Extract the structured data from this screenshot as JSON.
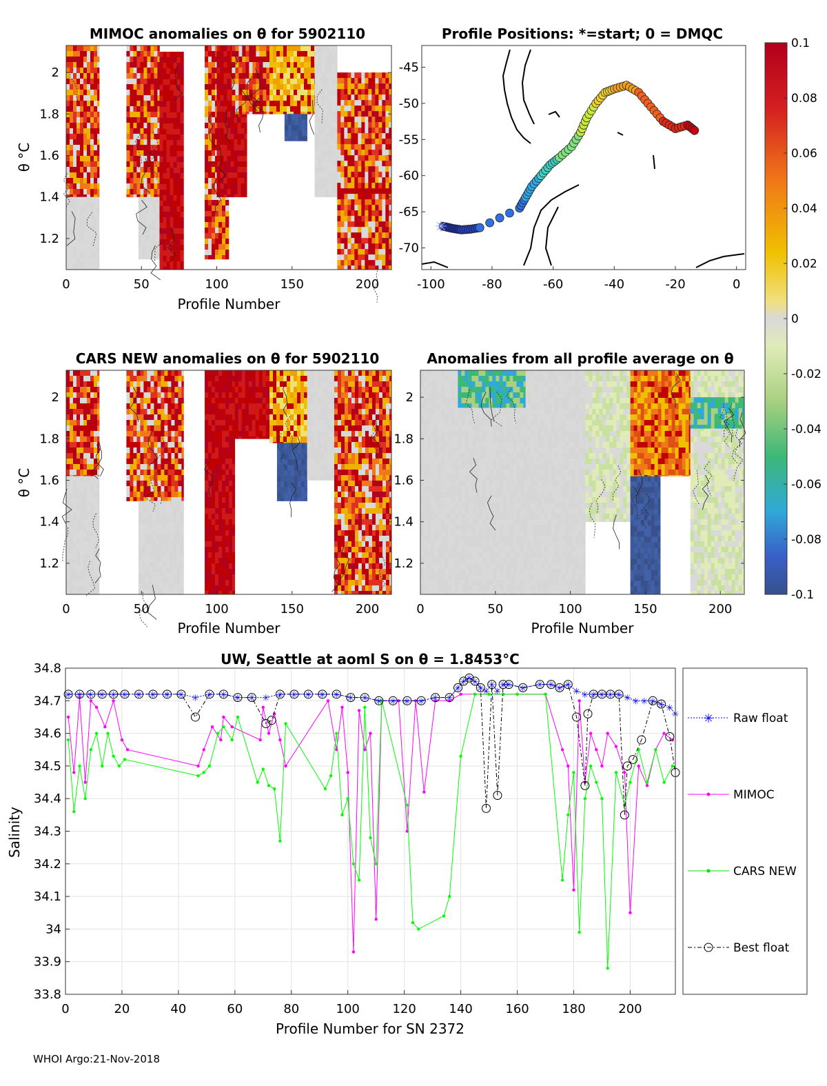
{
  "chart_data": [
    {
      "type": "heatmap",
      "id": "mimoc",
      "title": "MIMOC anomalies on θ  for 5902110",
      "xlabel": "Profile Number",
      "ylabel": "θ °C",
      "xlim": [
        0,
        216
      ],
      "ylim": [
        1.05,
        2.13
      ],
      "xticks": [
        0,
        50,
        100,
        150,
        200
      ],
      "yticks": [
        1.2,
        1.4,
        1.6,
        1.8,
        2
      ],
      "ytick_labels": [
        "1.2",
        "1.4",
        "1.6",
        "1.8",
        "2"
      ],
      "blocks": [
        {
          "x0": 0,
          "x1": 22,
          "y0": 1.4,
          "y1": 2.13,
          "c": "mix"
        },
        {
          "x0": 0,
          "x1": 22,
          "y0": 1.05,
          "y1": 1.4,
          "c": "gray"
        },
        {
          "x0": 40,
          "x1": 62,
          "y0": 1.4,
          "y1": 2.13,
          "c": "mix"
        },
        {
          "x0": 48,
          "x1": 62,
          "y0": 1.1,
          "y1": 1.4,
          "c": "gray"
        },
        {
          "x0": 62,
          "x1": 78,
          "y0": 1.05,
          "y1": 2.1,
          "c": "red"
        },
        {
          "x0": 92,
          "x1": 108,
          "y0": 1.1,
          "y1": 2.13,
          "c": "mix"
        },
        {
          "x0": 100,
          "x1": 120,
          "y0": 1.4,
          "y1": 2.13,
          "c": "red"
        },
        {
          "x0": 110,
          "x1": 135,
          "y0": 1.8,
          "y1": 2.13,
          "c": "mix"
        },
        {
          "x0": 135,
          "x1": 165,
          "y0": 1.8,
          "y1": 2.13,
          "c": "yellow"
        },
        {
          "x0": 145,
          "x1": 160,
          "y0": 1.67,
          "y1": 1.8,
          "c": "blue"
        },
        {
          "x0": 165,
          "x1": 180,
          "y0": 1.4,
          "y1": 2.13,
          "c": "gray"
        },
        {
          "x0": 180,
          "x1": 216,
          "y0": 1.05,
          "y1": 2.0,
          "c": "mix"
        }
      ]
    },
    {
      "type": "scatter",
      "id": "positions",
      "title": "Profile Positions: *=start; 0 = DMQC",
      "xlim": [
        -103,
        3
      ],
      "ylim": [
        -73,
        -42
      ],
      "xticks": [
        -100,
        -80,
        -60,
        -40,
        -20,
        0
      ],
      "yticks": [
        -45,
        -50,
        -55,
        -60,
        -65,
        -70
      ],
      "start": {
        "lon": -97,
        "lat": -67
      },
      "track": [
        [
          -96,
          -67
        ],
        [
          -93,
          -67.3
        ],
        [
          -90,
          -67.5
        ],
        [
          -87,
          -67.4
        ],
        [
          -84,
          -67.2
        ],
        [
          -71,
          -64.5
        ],
        [
          -69,
          -63
        ],
        [
          -67,
          -61.5
        ],
        [
          -64,
          -60
        ],
        [
          -61,
          -58.5
        ],
        [
          -58,
          -57.5
        ],
        [
          -54,
          -56
        ],
        [
          -51,
          -54
        ],
        [
          -49,
          -52
        ],
        [
          -46,
          -50
        ],
        [
          -43,
          -48.5
        ],
        [
          -40,
          -48
        ],
        [
          -36,
          -47.5
        ],
        [
          -32,
          -48.5
        ],
        [
          -28,
          -50.5
        ],
        [
          -24,
          -52.5
        ],
        [
          -20,
          -53.5
        ],
        [
          -16,
          -53
        ],
        [
          -13,
          -54
        ]
      ],
      "colorbar": {
        "min": -0.1,
        "max": 0.1,
        "tick_labels": [
          "0.1",
          "0.08",
          "0.06",
          "0.04",
          "0.02",
          "0",
          "-0.02",
          "-0.04",
          "-0.06",
          "-0.08",
          "-0.1"
        ]
      }
    },
    {
      "type": "heatmap",
      "id": "cars",
      "title": "CARS NEW anomalies on θ for 5902110",
      "xlabel": "Profile Number",
      "ylabel": "θ °C",
      "xlim": [
        0,
        216
      ],
      "ylim": [
        1.05,
        2.13
      ],
      "xticks": [
        0,
        50,
        100,
        150,
        200
      ],
      "yticks": [
        1.2,
        1.4,
        1.6,
        1.8,
        2
      ],
      "ytick_labels": [
        "1.2",
        "1.4",
        "1.6",
        "1.8",
        "2"
      ],
      "blocks": [
        {
          "x0": 0,
          "x1": 22,
          "y0": 1.62,
          "y1": 2.13,
          "c": "mix"
        },
        {
          "x0": 0,
          "x1": 22,
          "y0": 1.05,
          "y1": 1.62,
          "c": "gray"
        },
        {
          "x0": 40,
          "x1": 78,
          "y0": 1.5,
          "y1": 2.13,
          "c": "mix"
        },
        {
          "x0": 48,
          "x1": 78,
          "y0": 1.05,
          "y1": 1.5,
          "c": "gray"
        },
        {
          "x0": 92,
          "x1": 112,
          "y0": 1.05,
          "y1": 2.13,
          "c": "red"
        },
        {
          "x0": 112,
          "x1": 135,
          "y0": 1.8,
          "y1": 2.13,
          "c": "red"
        },
        {
          "x0": 135,
          "x1": 165,
          "y0": 1.78,
          "y1": 2.13,
          "c": "yellow"
        },
        {
          "x0": 140,
          "x1": 160,
          "y0": 1.5,
          "y1": 1.78,
          "c": "blue"
        },
        {
          "x0": 160,
          "x1": 178,
          "y0": 1.6,
          "y1": 2.13,
          "c": "gray"
        },
        {
          "x0": 178,
          "x1": 216,
          "y0": 1.05,
          "y1": 2.13,
          "c": "mix"
        }
      ]
    },
    {
      "type": "heatmap",
      "id": "allavg",
      "title": "Anomalies from all profile average on θ",
      "xlabel": "Profile Number",
      "xlim": [
        0,
        216
      ],
      "ylim": [
        1.05,
        2.13
      ],
      "xticks": [
        0,
        50,
        100,
        150,
        200
      ],
      "yticks": [
        1.2,
        1.4,
        1.6,
        1.8,
        2
      ],
      "ytick_labels": [
        "1.2",
        "1.4",
        "1.6",
        "1.8",
        "2"
      ],
      "blocks": [
        {
          "x0": 0,
          "x1": 110,
          "y0": 1.05,
          "y1": 2.13,
          "c": "gray"
        },
        {
          "x0": 25,
          "x1": 70,
          "y0": 1.95,
          "y1": 2.13,
          "c": "green"
        },
        {
          "x0": 110,
          "x1": 140,
          "y0": 1.4,
          "y1": 2.13,
          "c": "lightgreen"
        },
        {
          "x0": 140,
          "x1": 160,
          "y0": 1.05,
          "y1": 1.62,
          "c": "blue"
        },
        {
          "x0": 140,
          "x1": 180,
          "y0": 1.62,
          "y1": 2.13,
          "c": "orange"
        },
        {
          "x0": 180,
          "x1": 216,
          "y0": 1.05,
          "y1": 2.13,
          "c": "lightgreen"
        },
        {
          "x0": 180,
          "x1": 216,
          "y0": 1.85,
          "y1": 2.0,
          "c": "green"
        }
      ]
    },
    {
      "type": "line",
      "id": "salinity",
      "title": "UW, Seattle at aoml S on θ = 1.8453°C",
      "xlabel": "Profile Number for SN 2372",
      "ylabel": "Salinity",
      "xlim": [
        0,
        216
      ],
      "ylim": [
        33.8,
        34.8
      ],
      "xticks": [
        0,
        20,
        40,
        60,
        80,
        100,
        120,
        140,
        160,
        180,
        200
      ],
      "yticks": [
        33.8,
        33.9,
        34,
        34.1,
        34.2,
        34.3,
        34.4,
        34.5,
        34.6,
        34.7,
        34.8
      ],
      "ytick_labels": [
        "33.8",
        "33.9",
        "34",
        "34.1",
        "34.2",
        "34.3",
        "34.4",
        "34.5",
        "34.6",
        "34.7",
        "34.8"
      ],
      "series": [
        {
          "name": "Raw float",
          "color": "#0000ff",
          "x": [
            1,
            5,
            9,
            13,
            17,
            21,
            26,
            31,
            36,
            41,
            46,
            51,
            56,
            61,
            66,
            71,
            76,
            81,
            86,
            91,
            96,
            101,
            106,
            111,
            116,
            121,
            126,
            131,
            136,
            139,
            141,
            143,
            145,
            147,
            149,
            151,
            153,
            155,
            157,
            162,
            168,
            172,
            175,
            178,
            181,
            184,
            187,
            190,
            193,
            196,
            199,
            202,
            205,
            208,
            211,
            214,
            216
          ],
          "y": [
            34.72,
            34.72,
            34.72,
            34.72,
            34.72,
            34.72,
            34.72,
            34.72,
            34.72,
            34.72,
            34.71,
            34.72,
            34.72,
            34.71,
            34.71,
            34.71,
            34.72,
            34.72,
            34.72,
            34.72,
            34.72,
            34.71,
            34.71,
            34.7,
            34.7,
            34.7,
            34.7,
            34.71,
            34.71,
            34.74,
            34.76,
            34.77,
            34.76,
            34.74,
            34.73,
            34.75,
            34.73,
            34.75,
            34.75,
            34.74,
            34.75,
            34.75,
            34.74,
            34.75,
            34.73,
            34.72,
            34.72,
            34.72,
            34.72,
            34.72,
            34.71,
            34.7,
            34.7,
            34.7,
            34.69,
            34.68,
            34.66
          ]
        },
        {
          "name": "MIMOC",
          "color": "#ff00ff",
          "x": [
            1,
            3,
            5,
            7,
            9,
            11,
            14,
            17,
            20,
            22,
            47,
            49,
            52,
            55,
            56,
            59,
            69,
            70,
            72,
            74,
            76,
            78,
            93,
            96,
            98,
            100,
            102,
            104,
            106,
            108,
            110,
            112,
            118,
            121,
            124,
            127,
            131,
            136,
            140,
            145,
            150,
            155,
            160,
            170,
            176,
            178,
            180,
            182,
            184,
            186,
            188,
            190,
            192,
            195,
            198,
            200,
            203,
            206,
            209,
            212,
            215
          ],
          "y": [
            34.65,
            34.48,
            34.71,
            34.45,
            34.7,
            34.68,
            34.62,
            34.7,
            34.58,
            34.55,
            34.5,
            34.55,
            34.62,
            34.58,
            34.65,
            34.62,
            34.58,
            34.68,
            34.6,
            34.66,
            34.58,
            34.5,
            34.7,
            34.55,
            34.68,
            34.48,
            33.93,
            34.67,
            34.55,
            34.6,
            34.03,
            34.7,
            34.7,
            34.3,
            34.7,
            34.42,
            34.7,
            34.7,
            34.72,
            34.72,
            34.72,
            34.72,
            34.72,
            34.72,
            34.55,
            34.5,
            34.12,
            34.7,
            34.45,
            34.6,
            34.55,
            34.5,
            34.6,
            34.56,
            34.48,
            34.05,
            34.5,
            34.44,
            34.55,
            34.6,
            34.58
          ],
          "y_note": ""
        },
        {
          "name": "CARS NEW",
          "color": "#00ff00",
          "x": [
            1,
            3,
            5,
            7,
            9,
            11,
            13,
            15,
            17,
            19,
            21,
            47,
            49,
            51,
            54,
            56,
            59,
            61,
            68,
            70,
            72,
            74,
            76,
            78,
            92,
            94,
            96,
            98,
            100,
            102,
            104,
            106,
            108,
            110,
            112,
            121,
            123,
            125,
            134,
            136,
            140,
            145,
            150,
            155,
            160,
            170,
            176,
            178,
            180,
            182,
            184,
            186,
            188,
            190,
            192,
            195,
            198,
            200,
            203,
            206,
            209,
            212,
            215
          ],
          "y": [
            34.58,
            34.36,
            34.5,
            34.4,
            34.55,
            34.6,
            34.5,
            34.6,
            34.53,
            34.5,
            34.52,
            34.47,
            34.48,
            34.5,
            34.6,
            34.62,
            34.58,
            34.65,
            34.45,
            34.49,
            34.44,
            34.43,
            34.27,
            34.63,
            34.43,
            34.47,
            34.6,
            34.35,
            34.4,
            34.2,
            34.15,
            34.68,
            34.28,
            34.2,
            34.7,
            34.38,
            34.02,
            34.0,
            34.04,
            34.1,
            34.53,
            34.72,
            34.72,
            34.72,
            34.72,
            34.72,
            34.15,
            34.35,
            34.48,
            33.99,
            34.4,
            34.5,
            34.45,
            34.4,
            33.88,
            34.48,
            34.38,
            34.45,
            34.55,
            34.45,
            34.55,
            34.45,
            34.5
          ]
        },
        {
          "name": "Best float",
          "color": "#000000",
          "x": [
            1,
            5,
            9,
            13,
            17,
            21,
            26,
            31,
            36,
            41,
            46,
            51,
            56,
            61,
            66,
            71,
            73,
            76,
            81,
            86,
            91,
            96,
            101,
            106,
            111,
            116,
            121,
            126,
            131,
            136,
            139,
            141,
            143,
            145,
            147,
            149,
            151,
            153,
            155,
            157,
            162,
            168,
            172,
            175,
            178,
            181,
            184,
            185,
            187,
            190,
            193,
            196,
            198,
            199,
            201,
            204,
            208,
            211,
            214,
            216
          ],
          "y": [
            34.72,
            34.72,
            34.72,
            34.72,
            34.72,
            34.72,
            34.72,
            34.72,
            34.72,
            34.72,
            34.65,
            34.72,
            34.72,
            34.71,
            34.71,
            34.63,
            34.64,
            34.72,
            34.72,
            34.72,
            34.72,
            34.72,
            34.71,
            34.71,
            34.7,
            34.7,
            34.7,
            34.7,
            34.71,
            34.71,
            34.74,
            34.76,
            34.77,
            34.76,
            34.74,
            34.37,
            34.75,
            34.41,
            34.75,
            34.75,
            34.74,
            34.75,
            34.75,
            34.74,
            34.75,
            34.65,
            34.44,
            34.66,
            34.72,
            34.72,
            34.72,
            34.72,
            34.35,
            34.5,
            34.52,
            34.58,
            34.7,
            34.69,
            34.59,
            34.48
          ]
        }
      ],
      "legend": [
        "Raw float",
        "MIMOC",
        "CARS NEW",
        "Best float"
      ]
    }
  ],
  "footer": "WHOI Argo:21-Nov-2018"
}
